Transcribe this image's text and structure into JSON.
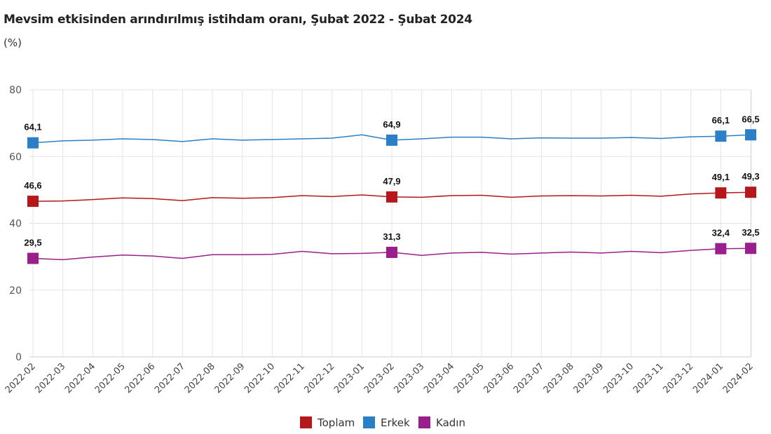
{
  "chart_data": {
    "type": "line",
    "title": "Mevsim etkisinden arındırılmış istihdam oranı, Şubat 2022 - Şubat 2024",
    "subtitle": "(%)",
    "xlabel": "",
    "ylabel": "",
    "ylim": [
      0,
      80
    ],
    "yticks": [
      0,
      20,
      40,
      60,
      80
    ],
    "grid": true,
    "legend_position": "bottom",
    "x": [
      "2022-02",
      "2022-03",
      "2022-04",
      "2022-05",
      "2022-06",
      "2022-07",
      "2022-08",
      "2022-09",
      "2022-10",
      "2022-11",
      "2022-12",
      "2023-01",
      "2023-02",
      "2023-03",
      "2023-04",
      "2023-05",
      "2023-06",
      "2023-07",
      "2023-08",
      "2023-09",
      "2023-10",
      "2023-11",
      "2023-12",
      "2024-01",
      "2024-02"
    ],
    "labeled_points": [
      0,
      12,
      23,
      24
    ],
    "series": [
      {
        "name": "Toplam",
        "color": "#b5171b",
        "values": [
          46.6,
          46.7,
          47.1,
          47.6,
          47.4,
          46.8,
          47.7,
          47.5,
          47.7,
          48.3,
          48.0,
          48.5,
          47.9,
          47.8,
          48.3,
          48.4,
          47.8,
          48.2,
          48.3,
          48.2,
          48.4,
          48.1,
          48.8,
          49.1,
          49.3
        ],
        "data_labels": [
          "46,6",
          "47,9",
          "49,1",
          "49,3"
        ]
      },
      {
        "name": "Erkek",
        "color": "#2a7fc6",
        "values": [
          64.1,
          64.7,
          64.9,
          65.3,
          65.1,
          64.5,
          65.3,
          64.9,
          65.1,
          65.3,
          65.5,
          66.5,
          64.9,
          65.3,
          65.8,
          65.8,
          65.3,
          65.6,
          65.5,
          65.5,
          65.7,
          65.4,
          65.9,
          66.1,
          66.5
        ],
        "data_labels": [
          "64,1",
          "64,9",
          "66,1",
          "66,5"
        ]
      },
      {
        "name": "Kadın",
        "color": "#9a1e8c",
        "values": [
          29.5,
          29.1,
          29.9,
          30.5,
          30.2,
          29.5,
          30.6,
          30.6,
          30.7,
          31.6,
          30.9,
          31.0,
          31.3,
          30.4,
          31.1,
          31.3,
          30.8,
          31.1,
          31.4,
          31.1,
          31.6,
          31.2,
          31.9,
          32.4,
          32.5
        ],
        "data_labels": [
          "29,5",
          "31,3",
          "32,4",
          "32,5"
        ]
      }
    ]
  }
}
